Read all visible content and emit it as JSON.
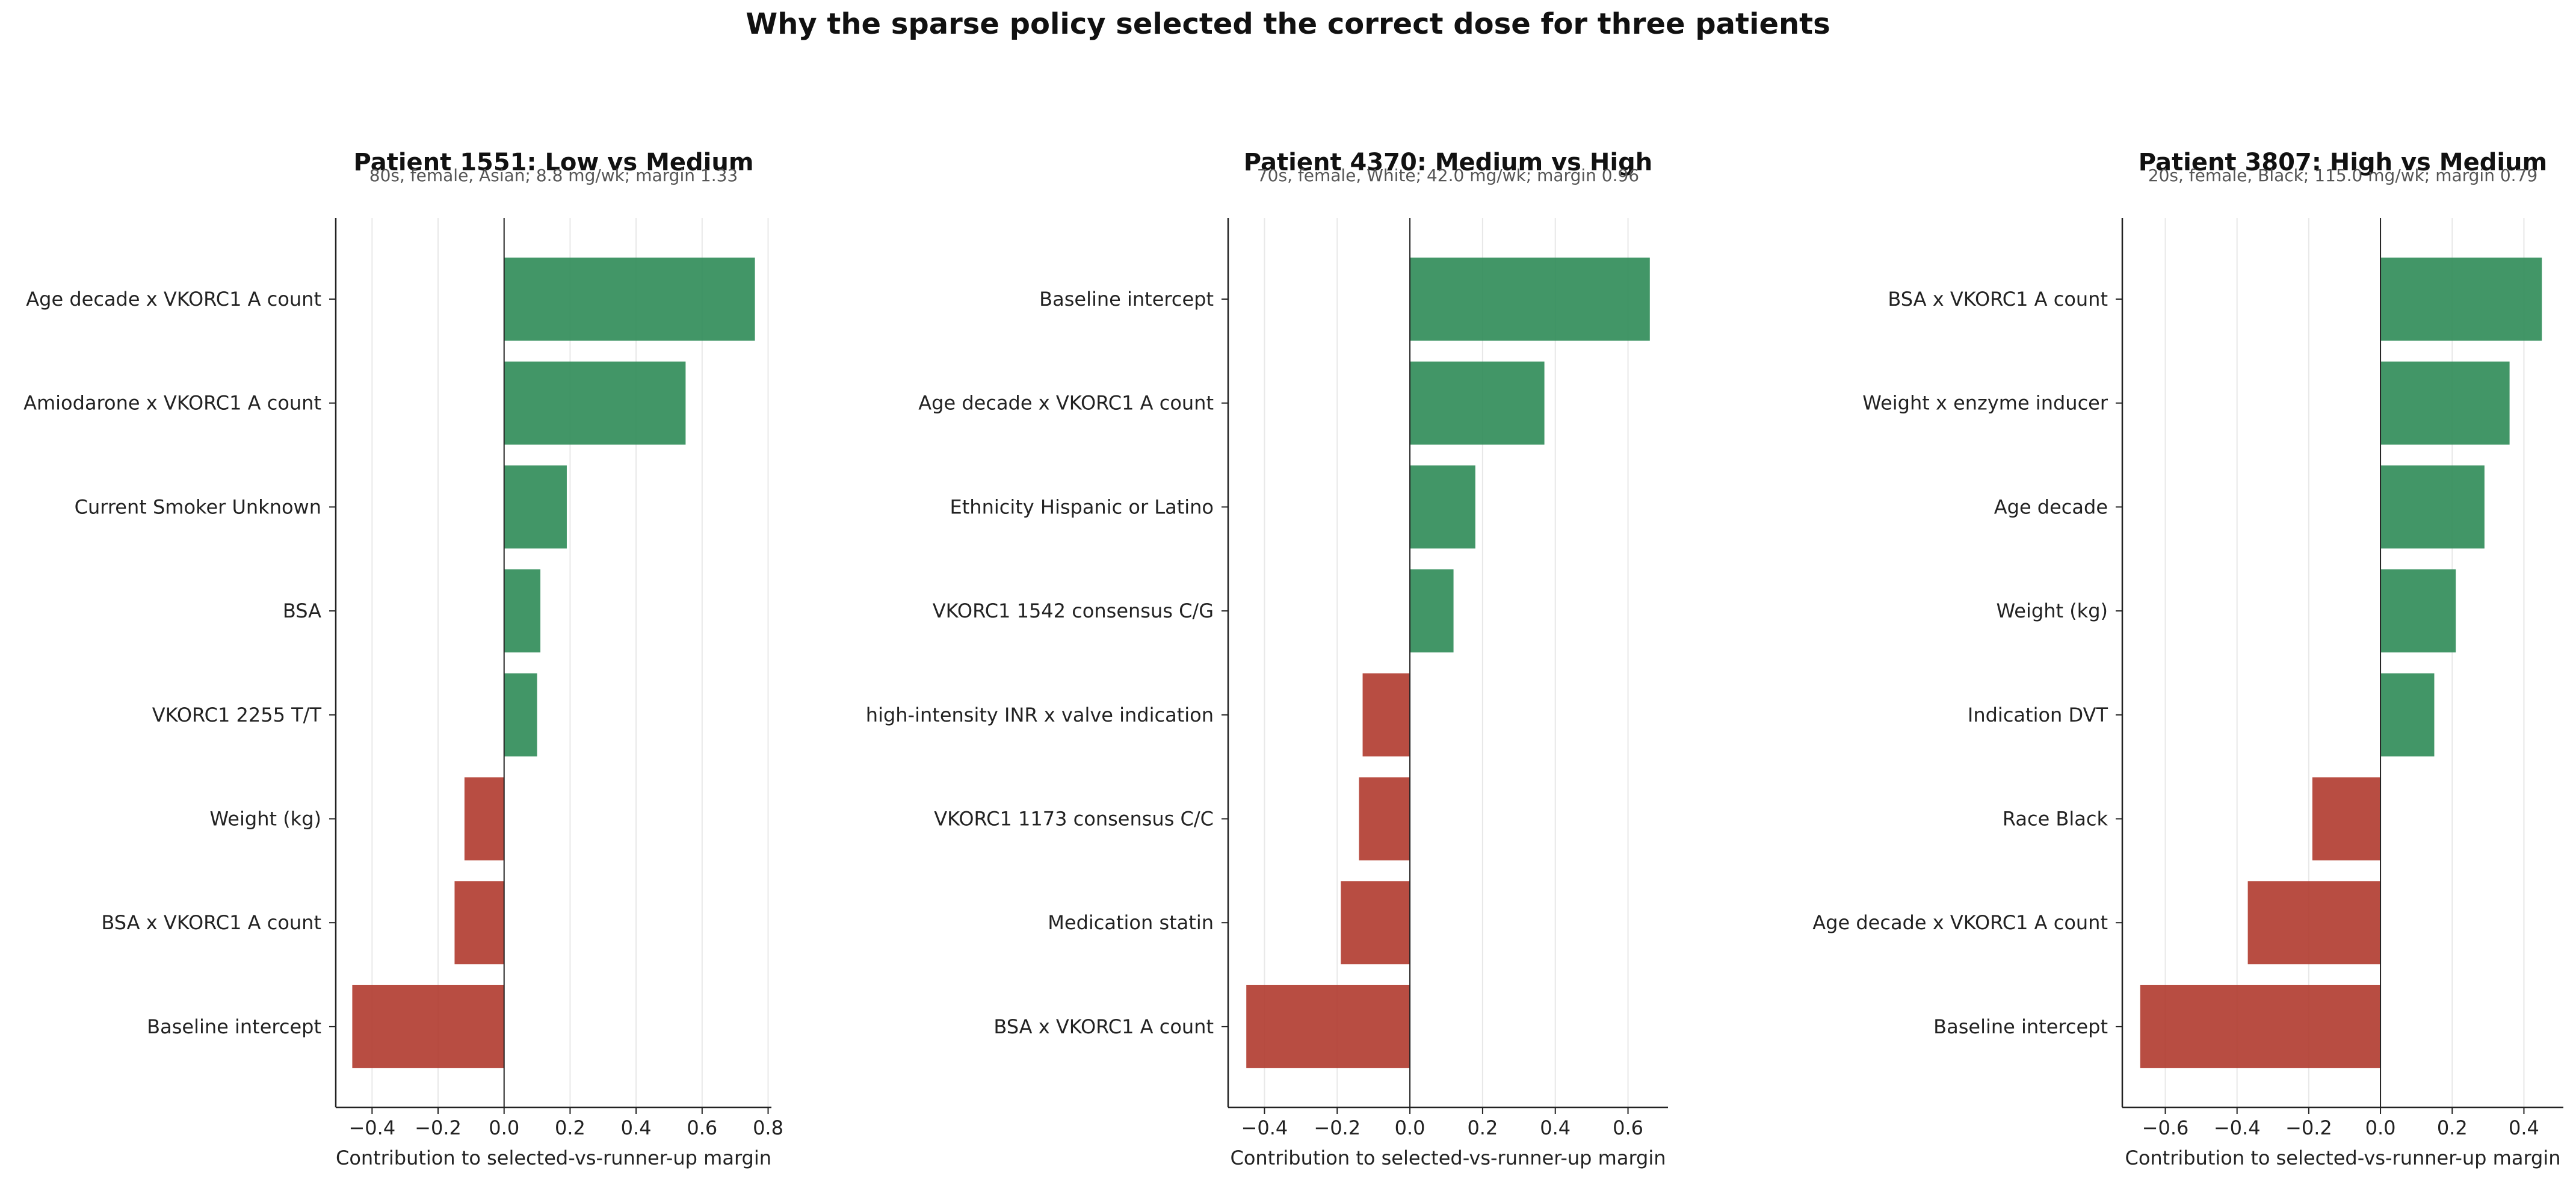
{
  "figure_title": "Why the sparse policy selected the correct dose for three patients",
  "colors": {
    "positive": "#2e8b57",
    "negative": "#b03a2e",
    "axis": "#222222",
    "grid": "#e8e8e8",
    "subtitle": "#555555"
  },
  "chart_data": [
    {
      "type": "bar",
      "orientation": "horizontal",
      "title": "Patient 1551: Low vs Medium",
      "subtitle": "80s, female, Asian; 8.8 mg/wk; margin 1.33",
      "xlabel": "Contribution to selected-vs-runner-up margin",
      "xlim": [
        -0.51,
        0.81
      ],
      "xticks": [
        -0.4,
        -0.2,
        0.0,
        0.2,
        0.4,
        0.6,
        0.8
      ],
      "xtick_labels": [
        "−0.4",
        "−0.2",
        "0.0",
        "0.2",
        "0.4",
        "0.6",
        "0.8"
      ],
      "grid": "vertical",
      "categories": [
        "Age decade x VKORC1 A count",
        "Amiodarone x VKORC1 A count",
        "Current Smoker Unknown",
        "BSA",
        "VKORC1 2255 T/T",
        "Weight (kg)",
        "BSA x VKORC1 A count",
        "Baseline intercept"
      ],
      "values": [
        0.76,
        0.55,
        0.19,
        0.11,
        0.1,
        -0.12,
        -0.15,
        -0.46
      ]
    },
    {
      "type": "bar",
      "orientation": "horizontal",
      "title": "Patient 4370: Medium vs High",
      "subtitle": "70s, female, White; 42.0 mg/wk; margin 0.96",
      "xlabel": "Contribution to selected-vs-runner-up margin",
      "xlim": [
        -0.5,
        0.71
      ],
      "xticks": [
        -0.4,
        -0.2,
        0.0,
        0.2,
        0.4,
        0.6
      ],
      "xtick_labels": [
        "−0.4",
        "−0.2",
        "0.0",
        "0.2",
        "0.4",
        "0.6"
      ],
      "grid": "vertical",
      "categories": [
        "Baseline intercept",
        "Age decade x VKORC1 A count",
        "Ethnicity Hispanic or Latino",
        "VKORC1 1542 consensus C/G",
        "high-intensity INR x valve indication",
        "VKORC1 1173 consensus C/C",
        "Medication statin",
        "BSA x VKORC1 A count"
      ],
      "values": [
        0.66,
        0.37,
        0.18,
        0.12,
        -0.13,
        -0.14,
        -0.19,
        -0.45
      ]
    },
    {
      "type": "bar",
      "orientation": "horizontal",
      "title": "Patient 3807: High vs Medium",
      "subtitle": "20s, female, Black; 115.0 mg/wk; margin 0.79",
      "xlabel": "Contribution to selected-vs-runner-up margin",
      "xlim": [
        -0.72,
        0.51
      ],
      "xticks": [
        -0.6,
        -0.4,
        -0.2,
        0.0,
        0.2,
        0.4
      ],
      "xtick_labels": [
        "−0.6",
        "−0.4",
        "−0.2",
        "0.0",
        "0.2",
        "0.4"
      ],
      "grid": "vertical",
      "categories": [
        "BSA x VKORC1 A count",
        "Weight x enzyme inducer",
        "Age decade",
        "Weight (kg)",
        "Indication DVT",
        "Race Black",
        "Age decade x VKORC1 A count",
        "Baseline intercept"
      ],
      "values": [
        0.45,
        0.36,
        0.29,
        0.21,
        0.15,
        -0.19,
        -0.37,
        -0.67
      ]
    }
  ]
}
